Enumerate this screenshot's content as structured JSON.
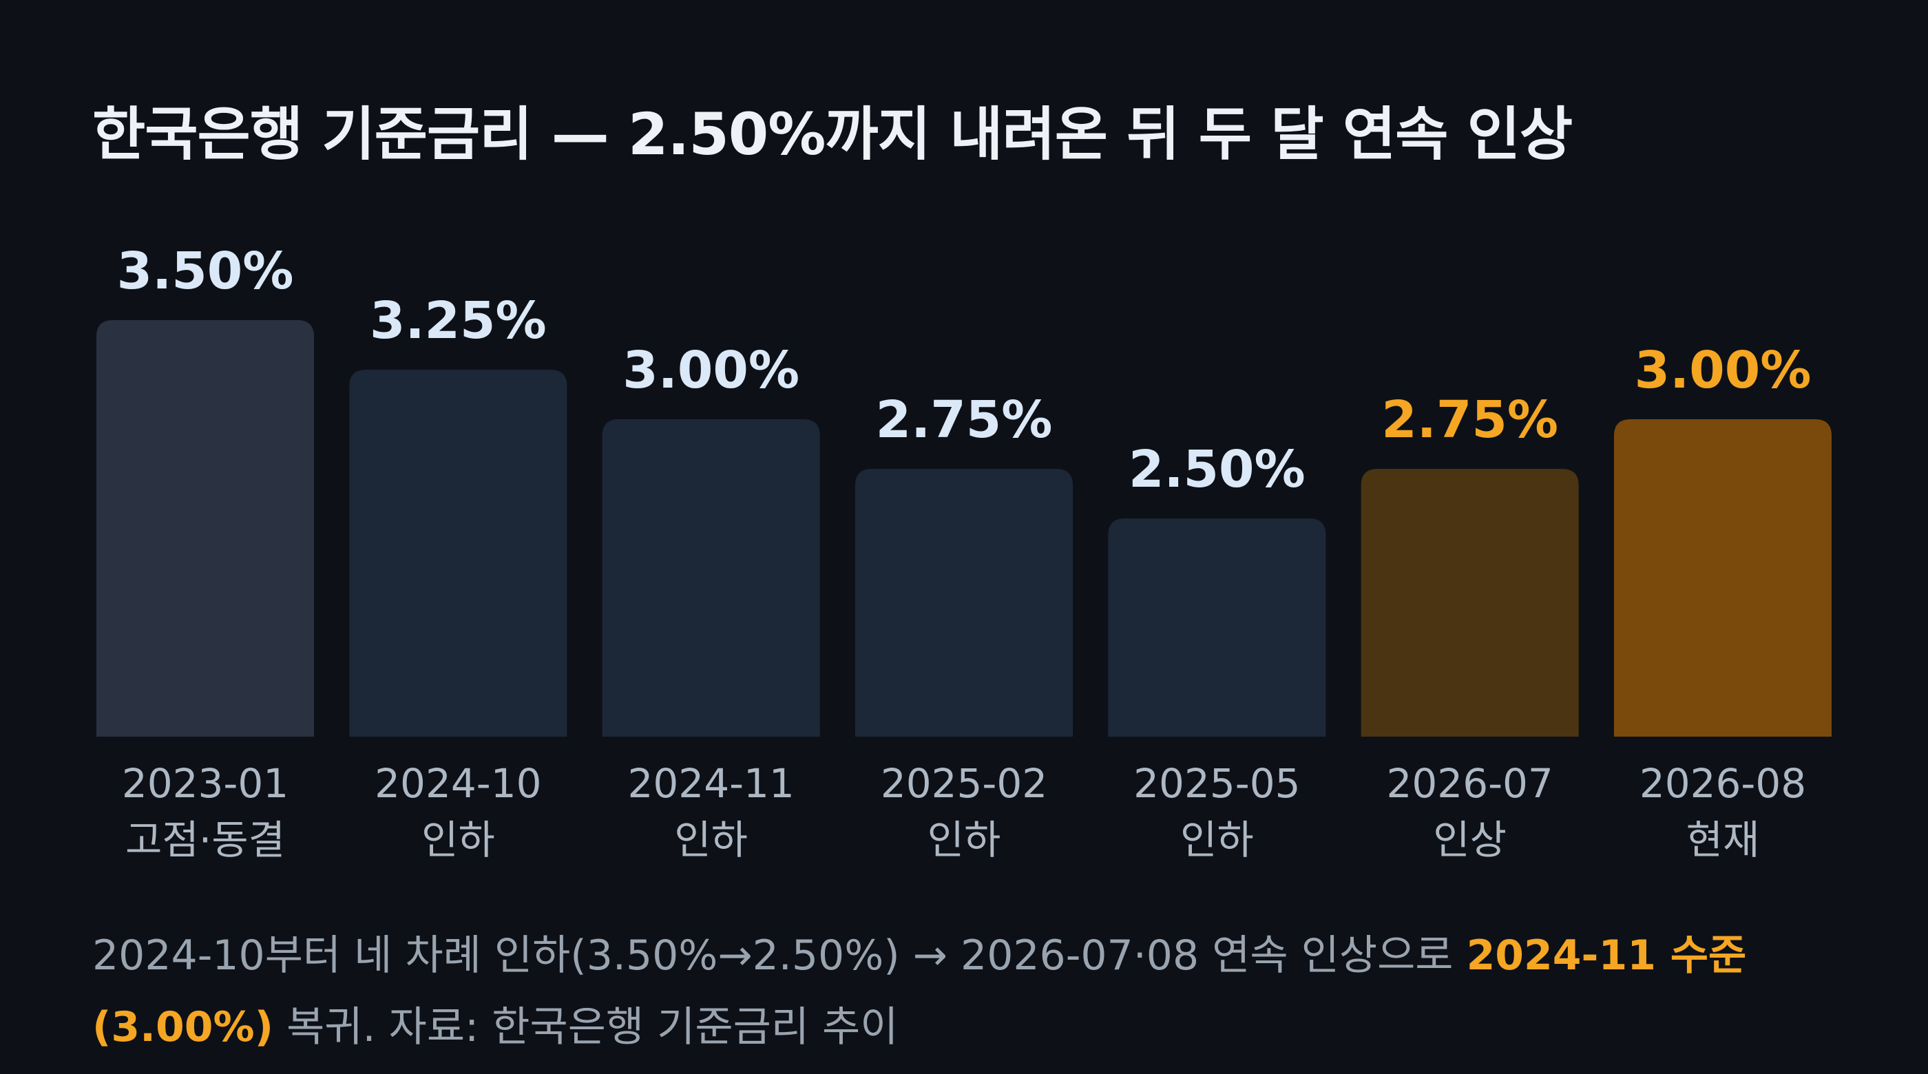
{
  "colors": {
    "background": "#0d1117",
    "bar_first": "#2a3241",
    "bar_blue": "#1c2838",
    "bar_amber_dim": "#4b3412",
    "bar_amber": "#7a4a0c",
    "label_blue": "#dbe8f7",
    "label_amber": "#f5a623",
    "tick": "#aeb8c4",
    "highlight": "#f5a623"
  },
  "chart_data": {
    "type": "bar",
    "title": "한국은행 기준금리 — 2.50%까지 내려온 뒤 두 달 연속 인상",
    "unit": "%",
    "categories": [
      "2023-01",
      "2024-10",
      "2024-11",
      "2025-02",
      "2025-05",
      "2026-07",
      "2026-08"
    ],
    "sublabels": [
      "고점·동결",
      "인하",
      "인하",
      "인하",
      "인하",
      "인상",
      "현재"
    ],
    "values": [
      3.5,
      3.25,
      3.0,
      2.75,
      2.5,
      2.75,
      3.0
    ],
    "data_labels": [
      "3.50%",
      "3.25%",
      "3.00%",
      "2.75%",
      "2.50%",
      "2.75%",
      "3.00%"
    ],
    "bar_colors": [
      "#2a3241",
      "#1c2838",
      "#1c2838",
      "#1c2838",
      "#1c2838",
      "#4b3412",
      "#7a4a0c"
    ],
    "label_colors": [
      "#dbe8f7",
      "#dbe8f7",
      "#dbe8f7",
      "#dbe8f7",
      "#dbe8f7",
      "#f5a623",
      "#f5a623"
    ],
    "baseline": 1.4,
    "ylim": [
      1.4,
      3.5
    ],
    "grid": false,
    "legend": "none"
  },
  "footnote": {
    "part1": "2024-10부터 네 차례 인하(3.50%→2.50%) → 2026-07·08 연속 인상으로 ",
    "highlight": "2024-11 수준(3.00%)",
    "part2": " 복귀. 자료: 한국은행 기준금리 추이"
  }
}
